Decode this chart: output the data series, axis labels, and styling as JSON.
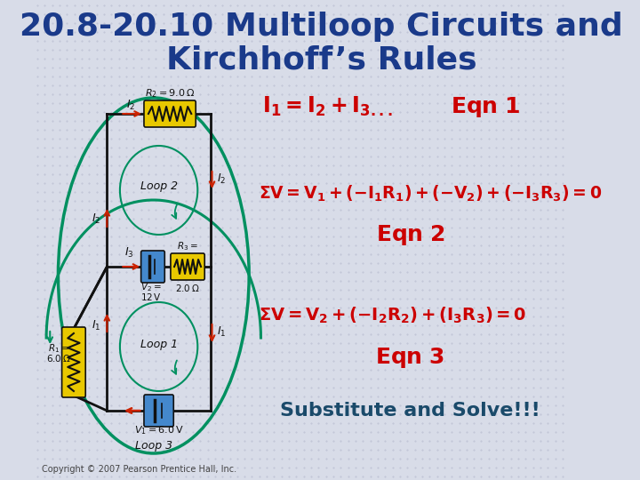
{
  "background_color": "#d8dce8",
  "title_line1": "20.8-20.10 Multiloop Circuits and",
  "title_line2": "Kirchhoff’s Rules",
  "title_color": "#1a3a8a",
  "title_fontsize": 26,
  "red": "#cc0000",
  "teal": "#1a5a6a",
  "substitute_color": "#1a4a6a",
  "substitute_text": "Substitute and Solve!!!",
  "copyright_text": "Copyright © 2007 Pearson Prentice Hall, Inc.",
  "copyright_color": "#444444",
  "grid_color": "#b8bcd0",
  "circ_green": "#009060",
  "circ_red": "#cc2200",
  "circ_black": "#111111",
  "circ_yellow": "#e8c800",
  "circ_blue": "#4488cc"
}
